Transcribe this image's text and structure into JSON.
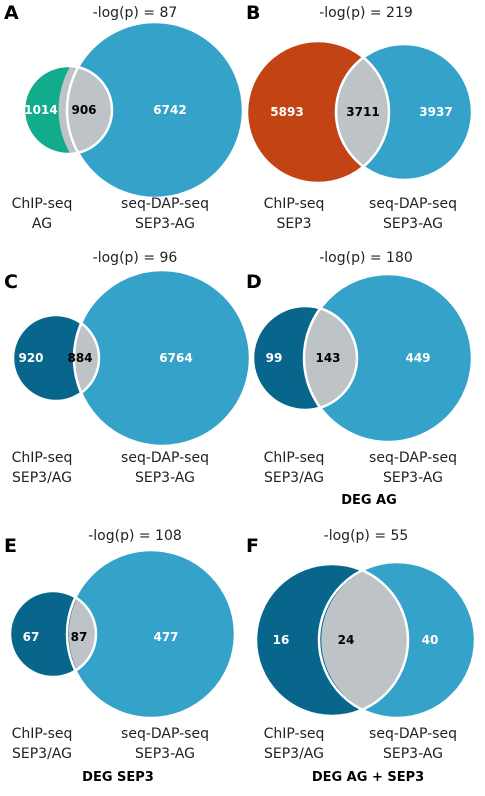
{
  "colors": {
    "seq_dap": "#34a2c9",
    "overlap": "#bdc3c6",
    "chip_ag": "#12ab8b",
    "chip_sep3": "#c24414",
    "chip_sep3ag": "#08668c",
    "count_on_color": "#ffffff",
    "count_on_overlap": "#000000",
    "outline": "#ffffff"
  },
  "panels": [
    {
      "id": "A",
      "letter": "A",
      "pvalue": "-log(p) = 87",
      "left_fill": "chip_ag",
      "counts": {
        "left": "1014",
        "overlap": "906",
        "right": "6742"
      },
      "left_label": [
        "ChIP-seq",
        "AG"
      ],
      "right_label": [
        "seq-DAP-seq",
        "SEP3-AG"
      ],
      "caption": ""
    },
    {
      "id": "B",
      "letter": "B",
      "pvalue": "-log(p) = 219",
      "left_fill": "chip_sep3",
      "counts": {
        "left": "5893",
        "overlap": "3711",
        "right": "3937"
      },
      "left_label": [
        "ChIP-seq",
        "SEP3"
      ],
      "right_label": [
        "seq-DAP-seq",
        "SEP3-AG"
      ],
      "caption": ""
    },
    {
      "id": "C",
      "letter": "C",
      "pvalue": "-log(p) = 96",
      "left_fill": "chip_sep3ag",
      "counts": {
        "left": "920",
        "overlap": "884",
        "right": "6764"
      },
      "left_label": [
        "ChIP-seq",
        "SEP3/AG"
      ],
      "right_label": [
        "seq-DAP-seq",
        "SEP3-AG"
      ],
      "caption": ""
    },
    {
      "id": "D",
      "letter": "D",
      "pvalue": "-log(p) = 180",
      "left_fill": "chip_sep3ag",
      "counts": {
        "left": "99",
        "overlap": "143",
        "right": "449"
      },
      "left_label": [
        "ChIP-seq",
        "SEP3/AG"
      ],
      "right_label": [
        "seq-DAP-seq",
        "SEP3-AG"
      ],
      "caption": "DEG AG"
    },
    {
      "id": "E",
      "letter": "E",
      "pvalue": "-log(p) = 108",
      "left_fill": "chip_sep3ag",
      "counts": {
        "left": "67",
        "overlap": "87",
        "right": "477"
      },
      "left_label": [
        "ChIP-seq",
        "SEP3/AG"
      ],
      "right_label": [
        "seq-DAP-seq",
        "SEP3-AG"
      ],
      "caption": "DEG SEP3"
    },
    {
      "id": "F",
      "letter": "F",
      "pvalue": "-log(p) = 55",
      "left_fill": "chip_sep3ag",
      "counts": {
        "left": "16",
        "overlap": "24",
        "right": "40"
      },
      "left_label": [
        "ChIP-seq",
        "SEP3/AG"
      ],
      "right_label": [
        "seq-DAP-seq",
        "SEP3-AG"
      ],
      "caption": "DEG AG + SEP3"
    }
  ]
}
